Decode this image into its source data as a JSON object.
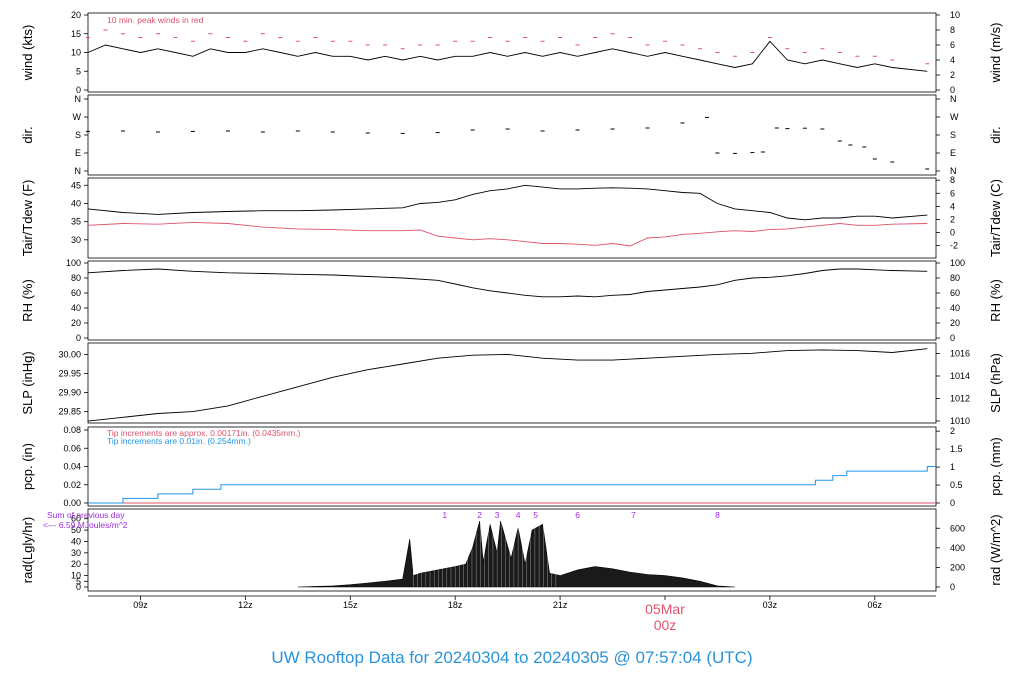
{
  "title": "UW Rooftop Data for 20240304  to  20240305 @ 07:57:04  (UTC)",
  "date_label": "05Mar",
  "date_sub_label": "00z",
  "colors": {
    "line": "#000000",
    "red": "#df536b",
    "blue": "#2297e6",
    "purple": "#9f2be0",
    "title": "#2b94d8"
  },
  "annotations": {
    "peak_winds": "10 min. peak winds in red",
    "tip_approx": "Tip increments are approx. 0.00171in. (0.0435mm.)",
    "tip_exact": "Tip increments are 0.01in. (0.254mm.)",
    "prev_day_1": "Sum of previous day",
    "prev_day_2": "<--- 6.59 MJoules/m^2"
  },
  "chart_data": [
    {
      "type": "line",
      "name": "wind",
      "ylabel": "wind (kts)",
      "ylabel_right": "wind (m/s)",
      "ylim": [
        0,
        20
      ],
      "yticks": [
        "0",
        "5",
        "10",
        "15",
        "20"
      ],
      "yticks_right": [
        "0",
        "2",
        "4",
        "6",
        "8",
        "10"
      ],
      "x_hours": [
        7.5,
        8,
        8.5,
        9,
        9.5,
        10,
        10.5,
        11,
        11.5,
        12,
        12.5,
        13,
        13.5,
        14,
        14.5,
        15,
        15.5,
        16,
        16.5,
        17,
        17.5,
        18,
        18.5,
        19,
        19.5,
        20,
        20.5,
        21,
        21.5,
        22,
        22.5,
        23,
        23.5,
        24,
        24.5,
        25,
        25.5,
        26,
        26.5,
        27,
        27.5,
        28,
        28.5,
        29,
        29.5,
        30,
        30.5,
        31.5
      ],
      "series": [
        {
          "values": [
            10,
            12,
            11,
            10,
            11,
            10,
            9,
            11,
            10,
            10,
            11,
            10,
            9,
            10,
            9,
            9,
            8,
            9,
            8,
            9,
            8,
            9,
            9,
            10,
            9,
            10,
            9,
            10,
            9,
            10,
            11,
            10,
            9,
            10,
            9,
            8,
            7,
            6,
            7,
            13,
            8,
            7,
            8,
            7,
            6,
            7,
            6,
            5
          ]
        },
        {
          "values": [
            14,
            16,
            15,
            14,
            15,
            14,
            13,
            15,
            14,
            13,
            15,
            14,
            13,
            14,
            13,
            13,
            12,
            12,
            11,
            12,
            12,
            13,
            13,
            14,
            13,
            14,
            13,
            14,
            12,
            14,
            15,
            14,
            12,
            13,
            12,
            11,
            10,
            9,
            10,
            14,
            11,
            10,
            11,
            10,
            9,
            9,
            8,
            7
          ]
        }
      ]
    },
    {
      "type": "scatter",
      "name": "direction",
      "ylabel": "dir.",
      "ylabel_right": "dir.",
      "yticks": [
        "N",
        "E",
        "S",
        "W",
        "N"
      ],
      "x_hours": [
        7.5,
        8.5,
        9.5,
        10.5,
        11.5,
        12.5,
        13.5,
        14.5,
        15.5,
        16.5,
        17.5,
        18.5,
        19.5,
        20.5,
        21.5,
        22.5,
        23.5,
        24.5,
        25.2,
        25.5,
        26,
        26.5,
        26.8,
        27.2,
        27.5,
        28,
        28.5,
        29,
        29.3,
        29.7,
        30,
        30.5,
        31.5
      ],
      "values": [
        198,
        200,
        195,
        198,
        200,
        195,
        200,
        195,
        190,
        188,
        192,
        205,
        210,
        200,
        205,
        210,
        215,
        240,
        268,
        90,
        88,
        92,
        95,
        215,
        212,
        214,
        210,
        150,
        130,
        120,
        60,
        45,
        10
      ]
    },
    {
      "type": "line",
      "name": "temperature",
      "ylabel": "Tair/Tdew (F)",
      "ylabel_right": "Tair/Tdew (C)",
      "ylim": [
        25,
        47
      ],
      "yticks": [
        "30",
        "35",
        "40",
        "45"
      ],
      "yticks_right": [
        "-2",
        "0",
        "2",
        "4",
        "6",
        "8"
      ],
      "x_hours": [
        7.5,
        8.5,
        9.5,
        10.5,
        11.5,
        12.5,
        13.5,
        14.5,
        15.5,
        16.5,
        17,
        17.5,
        18,
        18.5,
        19,
        19.5,
        20,
        20.5,
        21,
        21.5,
        22,
        22.5,
        23,
        23.5,
        24,
        24.5,
        25,
        25.5,
        26,
        26.5,
        27,
        27.5,
        28,
        28.5,
        29,
        29.5,
        30,
        30.5,
        31.5
      ],
      "series": [
        {
          "values": [
            38.5,
            37.5,
            37,
            37.5,
            37.8,
            38,
            38,
            38.2,
            38.5,
            38.8,
            40,
            40.3,
            41,
            42.5,
            43.5,
            44,
            45,
            44.5,
            44,
            44,
            44.2,
            44.3,
            44.2,
            44,
            43.5,
            43,
            42.8,
            40,
            38.5,
            38,
            37.5,
            36,
            35.5,
            36,
            36,
            36.5,
            36.5,
            36,
            36.8
          ]
        },
        {
          "values": [
            34,
            34.5,
            34.3,
            34.8,
            34.5,
            33.5,
            33,
            32.8,
            32.5,
            32.5,
            32.7,
            31,
            30.5,
            30,
            30.3,
            30,
            29.5,
            29,
            29,
            28.8,
            28.5,
            29,
            28.3,
            30.5,
            30.8,
            31.5,
            31.8,
            32.2,
            32.5,
            32.3,
            32.8,
            33,
            33.5,
            34,
            34.5,
            34,
            34,
            34.3,
            34.5
          ]
        }
      ]
    },
    {
      "type": "line",
      "name": "relative_humidity",
      "ylabel": "RH (%)",
      "ylabel_right": "RH (%)",
      "ylim": [
        0,
        100
      ],
      "yticks": [
        "0",
        "20",
        "40",
        "60",
        "80",
        "100"
      ],
      "yticks_right": [
        "0",
        "20",
        "40",
        "60",
        "80",
        "100"
      ],
      "x_hours": [
        7.5,
        8.5,
        9.5,
        10.5,
        11.5,
        12.5,
        13.5,
        14.5,
        15.5,
        16.5,
        17.5,
        18,
        18.5,
        19,
        19.5,
        20,
        20.5,
        21,
        21.5,
        22,
        22.5,
        23,
        23.5,
        24,
        24.5,
        25,
        25.5,
        26,
        26.5,
        27,
        27.5,
        28,
        28.5,
        29,
        29.5,
        30,
        30.5,
        31.5
      ],
      "values": [
        87,
        90,
        92,
        89,
        87,
        86,
        85,
        84,
        82,
        80,
        77,
        72,
        67,
        63,
        60,
        57,
        55,
        55,
        56,
        55,
        57,
        58,
        62,
        64,
        66,
        68,
        71,
        77,
        80,
        81,
        83,
        86,
        90,
        92,
        92,
        91,
        90,
        89
      ]
    },
    {
      "type": "line",
      "name": "sea_level_pressure",
      "ylabel": "SLP (inHg)",
      "ylabel_right": "SLP (hPa)",
      "ylim": [
        29.82,
        30.03
      ],
      "yticks": [
        "29.85",
        "29.90",
        "29.95",
        "30.00"
      ],
      "yticks_right": [
        "1010",
        "1012",
        "1014",
        "1016"
      ],
      "x_hours": [
        7.5,
        8.5,
        9.5,
        10.5,
        11.5,
        12.5,
        13.5,
        14.5,
        15.5,
        16.5,
        17.5,
        18.5,
        19.5,
        20.5,
        21.5,
        22.5,
        23.5,
        24.5,
        25.5,
        26.5,
        27.5,
        28.5,
        29.5,
        30.5,
        31.5
      ],
      "values": [
        29.825,
        29.835,
        29.845,
        29.85,
        29.865,
        29.89,
        29.915,
        29.94,
        29.96,
        29.975,
        29.99,
        29.998,
        30.0,
        29.99,
        29.985,
        29.985,
        29.99,
        29.995,
        30.0,
        30.003,
        30.01,
        30.012,
        30.01,
        30.005,
        30.015
      ]
    },
    {
      "type": "line",
      "name": "precipitation",
      "ylabel": "pcp. (in)",
      "ylabel_right": "pcp. (mm)",
      "ylim": [
        0,
        0.08
      ],
      "yticks": [
        "0.00",
        "0.02",
        "0.04",
        "0.06",
        "0.08"
      ],
      "yticks_right": [
        "0",
        "0.5",
        "1",
        "1.5",
        "2"
      ],
      "series": [
        {
          "name": "approx",
          "x_hours": [
            7.5,
            31.75
          ],
          "values": [
            0,
            0
          ]
        },
        {
          "name": "exact",
          "x_hours": [
            7.5,
            8.5,
            8.5,
            9.5,
            9.5,
            10.5,
            10.5,
            11.3,
            11.3,
            28.3,
            28.3,
            28.8,
            28.8,
            29.2,
            29.2,
            31.5,
            31.5,
            31.75
          ],
          "values": [
            0,
            0,
            0.005,
            0.005,
            0.01,
            0.01,
            0.015,
            0.015,
            0.02,
            0.02,
            0.025,
            0.025,
            0.03,
            0.03,
            0.035,
            0.035,
            0.04,
            0.04
          ]
        }
      ]
    },
    {
      "type": "area",
      "name": "radiation",
      "ylabel": "rad(Lgly/hr)",
      "ylabel_right": "rad (W/m^2)",
      "ylim": [
        0,
        65
      ],
      "yticks": [
        "0",
        "5",
        "10",
        "20",
        "30",
        "40",
        "50",
        "60"
      ],
      "yticks_right": [
        "0",
        "200",
        "400",
        "600"
      ],
      "markers": [
        "1",
        "2",
        "3",
        "4",
        "5",
        "6",
        "7",
        "8"
      ],
      "marker_hours": [
        17.7,
        18.7,
        19.2,
        19.8,
        20.3,
        21.5,
        23.1,
        25.5
      ],
      "x_hours": [
        13.5,
        14,
        14.5,
        15,
        15.5,
        16,
        16.5,
        16.7,
        16.8,
        17,
        17.5,
        18,
        18.3,
        18.5,
        18.7,
        18.8,
        19,
        19.2,
        19.3,
        19.6,
        19.8,
        20,
        20.2,
        20.5,
        20.7,
        21,
        21.5,
        22,
        22.5,
        23,
        23.5,
        24,
        24.5,
        25,
        25.5,
        26
      ],
      "values": [
        0,
        0.5,
        1,
        2,
        3.5,
        5,
        7,
        42,
        10,
        12,
        15,
        18,
        20,
        35,
        58,
        22,
        55,
        30,
        58,
        25,
        52,
        20,
        50,
        55,
        12,
        10,
        15,
        18,
        16,
        13,
        11,
        10,
        8,
        5,
        1,
        0
      ]
    }
  ],
  "x_axis": {
    "tick_labels": [
      "09z",
      "12z",
      "15z",
      "18z",
      "21z",
      "03z",
      "06z"
    ],
    "tick_hours": [
      9,
      12,
      15,
      18,
      21,
      27,
      30
    ],
    "midnight_hour": 24
  }
}
